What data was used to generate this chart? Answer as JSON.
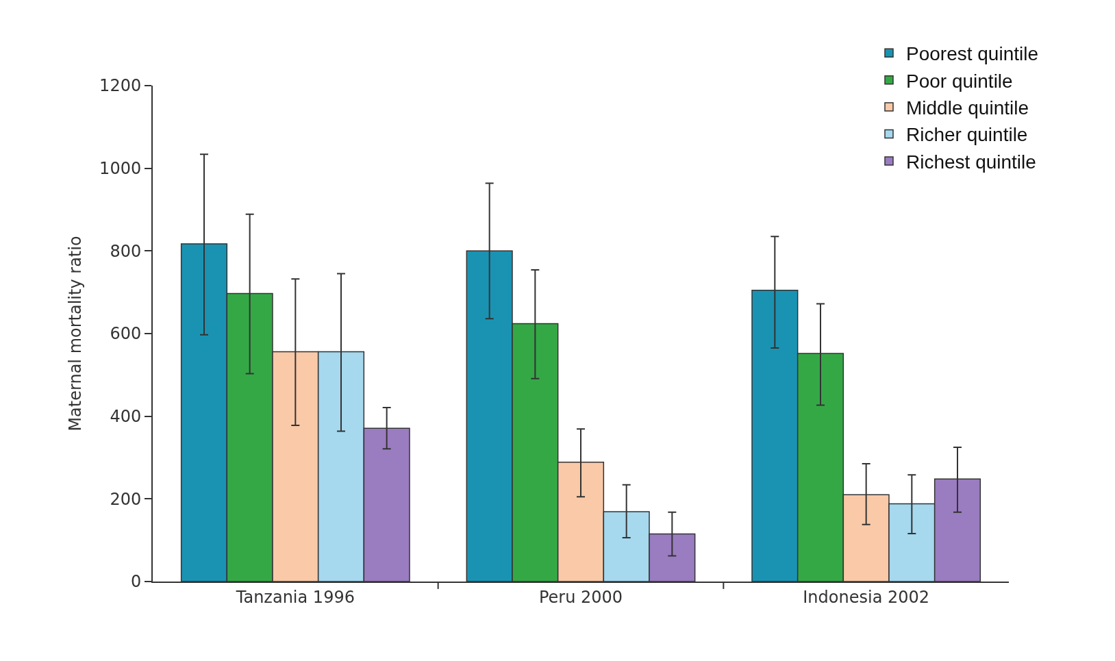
{
  "chart_data": {
    "type": "bar",
    "ylabel": "Maternal mortality ratio",
    "categories": [
      "Tanzania 1996",
      "Peru 2000",
      "Indonesia 2002"
    ],
    "ylim": [
      0,
      1200
    ],
    "yticks": [
      0,
      200,
      400,
      600,
      800,
      1000,
      1200
    ],
    "grid": false,
    "legend": "top right",
    "series": [
      {
        "name": "Poorest quintile",
        "color": "#1a93b3",
        "values": [
          817,
          800,
          705
        ],
        "errors": [
          [
            597,
            1034
          ],
          [
            636,
            964
          ],
          [
            565,
            835
          ]
        ]
      },
      {
        "name": "Poor quintile",
        "color": "#35a846",
        "values": [
          697,
          624,
          552
        ],
        "errors": [
          [
            503,
            889
          ],
          [
            491,
            754
          ],
          [
            427,
            672
          ]
        ]
      },
      {
        "name": "Middle quintile",
        "color": "#f9c9a8",
        "values": [
          556,
          289,
          210
        ],
        "errors": [
          [
            378,
            732
          ],
          [
            205,
            369
          ],
          [
            138,
            285
          ]
        ]
      },
      {
        "name": "Richer quintile",
        "color": "#a6d8ee",
        "values": [
          556,
          169,
          188
        ],
        "errors": [
          [
            364,
            745
          ],
          [
            106,
            234
          ],
          [
            116,
            258
          ]
        ]
      },
      {
        "name": "Richest quintile",
        "color": "#9a7cc0",
        "values": [
          371,
          115,
          248
        ],
        "errors": [
          [
            321,
            421
          ],
          [
            62,
            168
          ],
          [
            168,
            325
          ]
        ]
      }
    ]
  }
}
